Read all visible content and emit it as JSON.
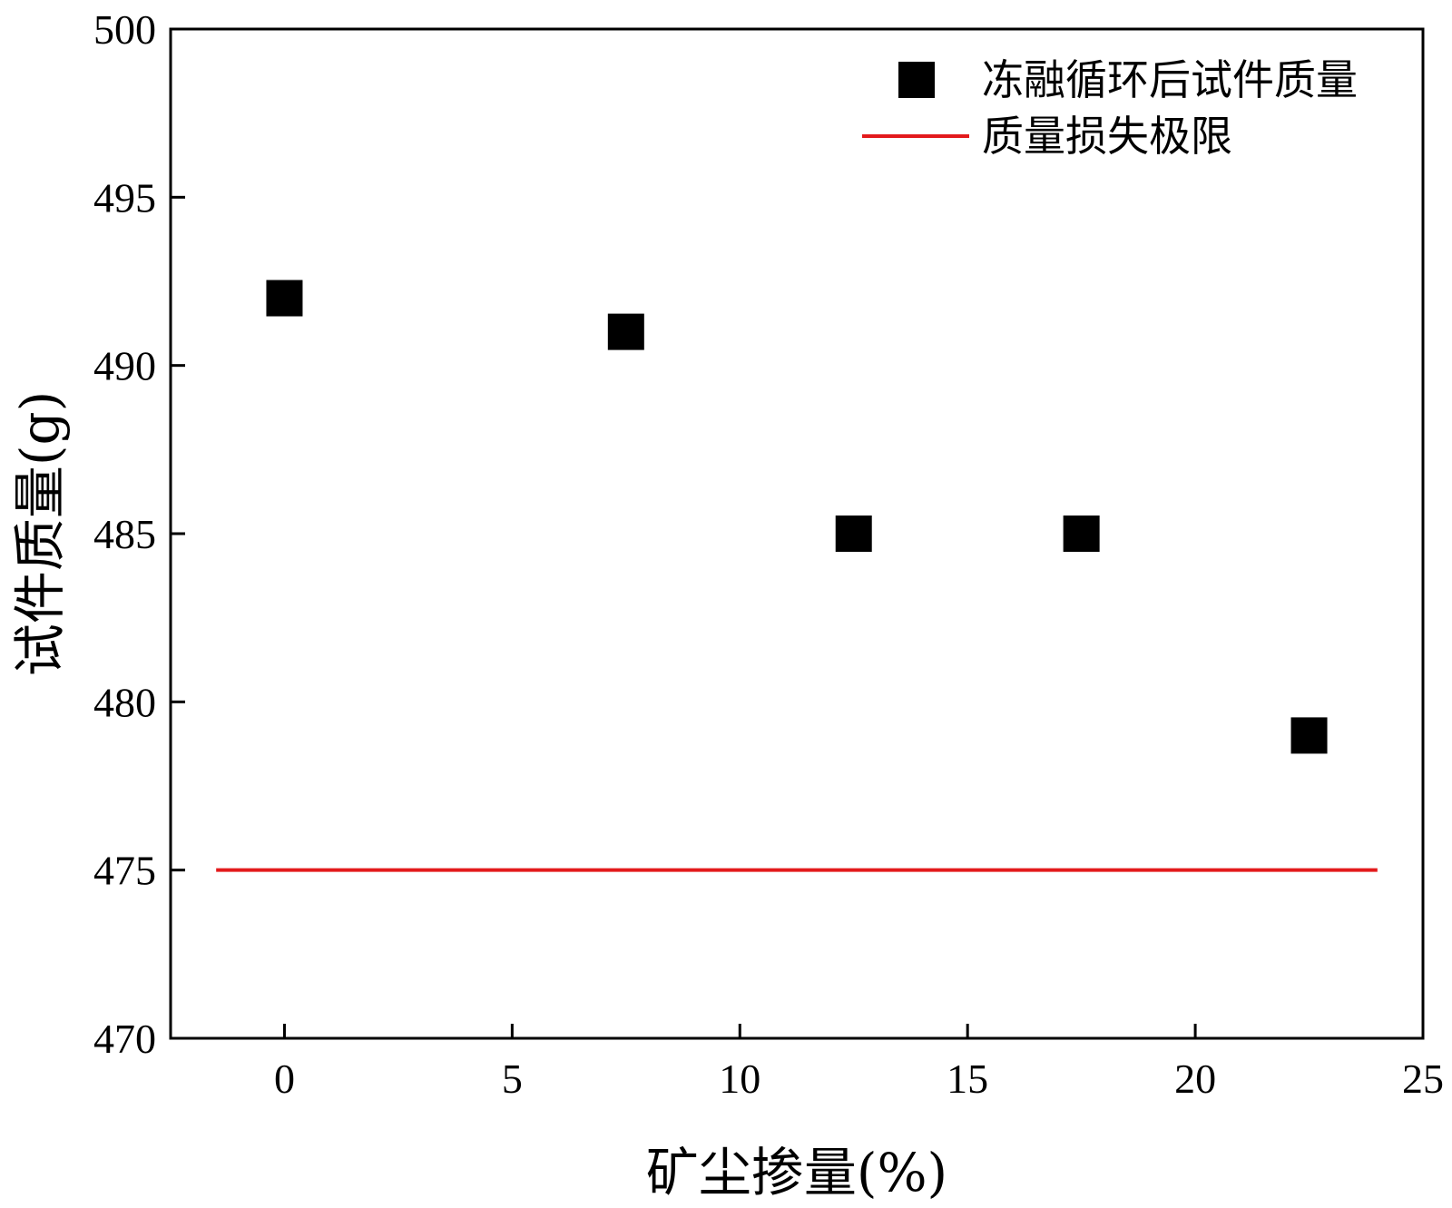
{
  "chart_data": {
    "type": "scatter",
    "xlabel": "矿尘掺量(%)",
    "ylabel": "试件质量(g)",
    "xlim": [
      -2.5,
      25
    ],
    "ylim": [
      470,
      500
    ],
    "x_ticks": [
      0,
      5,
      10,
      15,
      20,
      25
    ],
    "y_ticks": [
      470,
      475,
      480,
      485,
      490,
      495,
      500
    ],
    "grid": false,
    "legend_position": "top-right",
    "series": [
      {
        "name": "冻融循环后试件质量",
        "type": "scatter",
        "marker": "square",
        "color": "#000000",
        "x": [
          0,
          7.5,
          12.5,
          17.5,
          22.5
        ],
        "y": [
          492,
          491,
          485,
          485,
          479
        ]
      },
      {
        "name": "质量损失极限",
        "type": "line",
        "color": "#e31a1c",
        "x": [
          -1.5,
          24
        ],
        "y": [
          475,
          475
        ]
      }
    ]
  }
}
